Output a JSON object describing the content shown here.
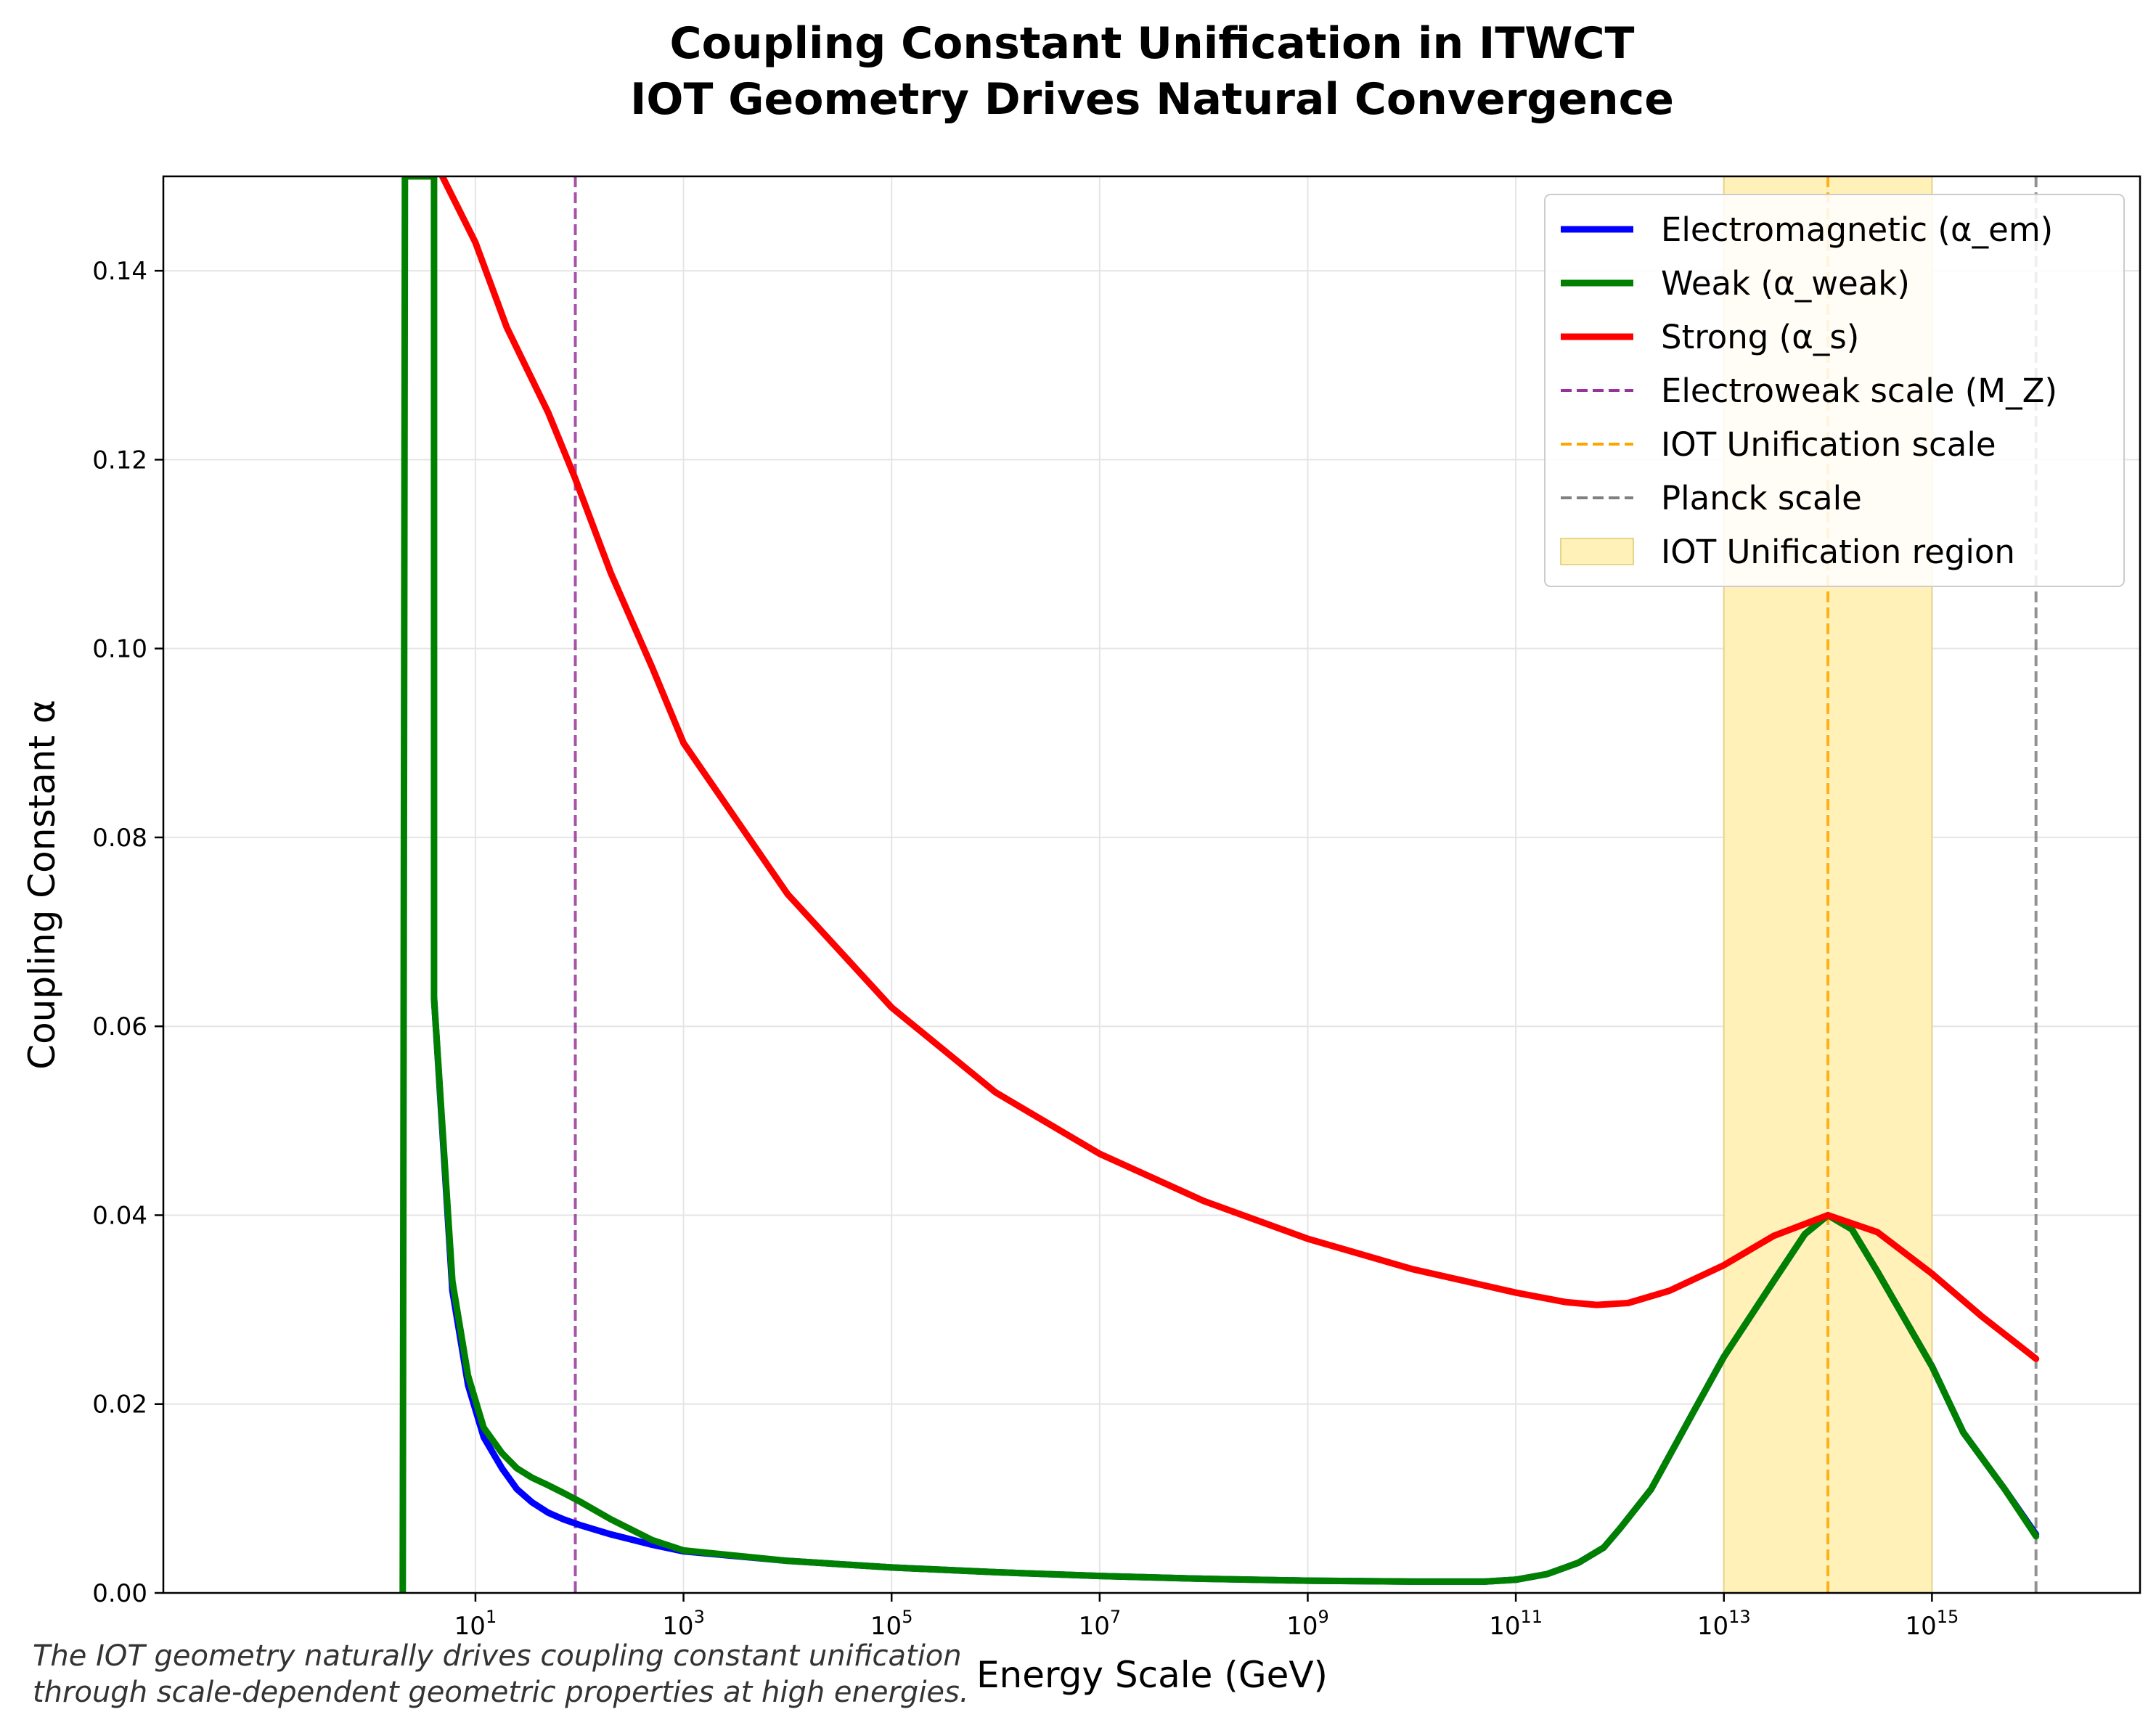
{
  "chart_data": {
    "type": "line",
    "title": "Coupling Constant Unification in ITWCT",
    "subtitle": "IOT Geometry Drives Natural Convergence",
    "xlabel": "Energy Scale (GeV)",
    "ylabel": "Coupling Constant α",
    "x_scale": "log",
    "xlim": [
      0.01,
      1e+17
    ],
    "ylim": [
      0,
      0.15
    ],
    "grid": true,
    "legend_position": "top-right",
    "x_ticks": [
      {
        "value": 10,
        "base": "10",
        "exp": "1"
      },
      {
        "value": 1000,
        "base": "10",
        "exp": "3"
      },
      {
        "value": 100000,
        "base": "10",
        "exp": "5"
      },
      {
        "value": 10000000,
        "base": "10",
        "exp": "7"
      },
      {
        "value": 1000000000,
        "base": "10",
        "exp": "9"
      },
      {
        "value": 100000000000,
        "base": "10",
        "exp": "11"
      },
      {
        "value": 10000000000000,
        "base": "10",
        "exp": "13"
      },
      {
        "value": 1000000000000000,
        "base": "10",
        "exp": "15"
      }
    ],
    "y_ticks": [
      {
        "value": 0,
        "label": "0.00"
      },
      {
        "value": 0.02,
        "label": "0.02"
      },
      {
        "value": 0.04,
        "label": "0.04"
      },
      {
        "value": 0.06,
        "label": "0.06"
      },
      {
        "value": 0.08,
        "label": "0.08"
      },
      {
        "value": 0.1,
        "label": "0.10"
      },
      {
        "value": 0.12,
        "label": "0.12"
      },
      {
        "value": 0.14,
        "label": "0.14"
      }
    ],
    "series": [
      {
        "name": "Electromagnetic (α_em)",
        "color": "#0000ff",
        "points": [
          [
            4,
            0.063
          ],
          [
            6,
            0.032
          ],
          [
            8.5,
            0.022
          ],
          [
            12,
            0.0165
          ],
          [
            18,
            0.0132
          ],
          [
            25,
            0.011
          ],
          [
            35,
            0.0096
          ],
          [
            50,
            0.0085
          ],
          [
            70,
            0.0078
          ],
          [
            100,
            0.0072
          ],
          [
            200,
            0.0062
          ],
          [
            500,
            0.0051
          ],
          [
            1000,
            0.0044
          ],
          [
            10000.0,
            0.0034
          ],
          [
            100000.0,
            0.0027
          ],
          [
            1000000.0,
            0.0022
          ],
          [
            10000000.0,
            0.0018
          ],
          [
            100000000.0,
            0.0015
          ],
          [
            1000000000.0,
            0.0013
          ],
          [
            10000000000.0,
            0.0012
          ],
          [
            50000000000.0,
            0.0012
          ],
          [
            100000000000.0,
            0.0014
          ],
          [
            200000000000.0,
            0.002
          ],
          [
            400000000000.0,
            0.0032
          ],
          [
            700000000000.0,
            0.0048
          ],
          [
            1000000000000.0,
            0.0068
          ],
          [
            2000000000000.0,
            0.011
          ],
          [
            5000000000000.0,
            0.019
          ],
          [
            10000000000000.0,
            0.025
          ],
          [
            30000000000000.0,
            0.033
          ],
          [
            60000000000000.0,
            0.038
          ],
          [
            100000000000000.0,
            0.04
          ],
          [
            170000000000000.0,
            0.0385
          ],
          [
            300000000000000.0,
            0.034
          ],
          [
            1000000000000000.0,
            0.024
          ],
          [
            2000000000000000.0,
            0.017
          ],
          [
            5000000000000000.0,
            0.011
          ],
          [
            1e+16,
            0.0062
          ]
        ]
      },
      {
        "name": "Weak (α_weak)",
        "color": "#008000",
        "points": [
          [
            2,
            0
          ],
          [
            2.1,
            0.15
          ],
          [
            4,
            0.15
          ],
          [
            4,
            0.063
          ],
          [
            6,
            0.033
          ],
          [
            8.5,
            0.023
          ],
          [
            12,
            0.0175
          ],
          [
            18,
            0.0148
          ],
          [
            25,
            0.0132
          ],
          [
            35,
            0.0122
          ],
          [
            50,
            0.0114
          ],
          [
            70,
            0.0106
          ],
          [
            100,
            0.0097
          ],
          [
            200,
            0.0078
          ],
          [
            500,
            0.0056
          ],
          [
            1000,
            0.0045
          ],
          [
            10000.0,
            0.0034
          ],
          [
            100000.0,
            0.0027
          ],
          [
            1000000.0,
            0.0022
          ],
          [
            10000000.0,
            0.0018
          ],
          [
            100000000.0,
            0.0015
          ],
          [
            1000000000.0,
            0.0013
          ],
          [
            10000000000.0,
            0.0012
          ],
          [
            50000000000.0,
            0.0012
          ],
          [
            100000000000.0,
            0.0014
          ],
          [
            200000000000.0,
            0.002
          ],
          [
            400000000000.0,
            0.0032
          ],
          [
            700000000000.0,
            0.0048
          ],
          [
            1000000000000.0,
            0.0068
          ],
          [
            2000000000000.0,
            0.011
          ],
          [
            5000000000000.0,
            0.019
          ],
          [
            10000000000000.0,
            0.025
          ],
          [
            30000000000000.0,
            0.033
          ],
          [
            60000000000000.0,
            0.038
          ],
          [
            100000000000000.0,
            0.04
          ],
          [
            170000000000000.0,
            0.0385
          ],
          [
            300000000000000.0,
            0.034
          ],
          [
            1000000000000000.0,
            0.024
          ],
          [
            2000000000000000.0,
            0.017
          ],
          [
            5000000000000000.0,
            0.011
          ],
          [
            1e+16,
            0.006
          ]
        ]
      },
      {
        "name": "Strong (α_s)",
        "color": "#ff0000",
        "points": [
          [
            4.8,
            0.15
          ],
          [
            10,
            0.143
          ],
          [
            20,
            0.134
          ],
          [
            50,
            0.125
          ],
          [
            91,
            0.118
          ],
          [
            200,
            0.108
          ],
          [
            500,
            0.098
          ],
          [
            1000,
            0.09
          ],
          [
            10000.0,
            0.074
          ],
          [
            100000.0,
            0.062
          ],
          [
            1000000.0,
            0.053
          ],
          [
            10000000.0,
            0.0465
          ],
          [
            100000000.0,
            0.0415
          ],
          [
            1000000000.0,
            0.0375
          ],
          [
            10000000000.0,
            0.0343
          ],
          [
            100000000000.0,
            0.0318
          ],
          [
            300000000000.0,
            0.0308
          ],
          [
            600000000000.0,
            0.0305
          ],
          [
            1200000000000.0,
            0.0307
          ],
          [
            3000000000000.0,
            0.032
          ],
          [
            10000000000000.0,
            0.0347
          ],
          [
            30000000000000.0,
            0.0378
          ],
          [
            100000000000000.0,
            0.04
          ],
          [
            300000000000000.0,
            0.0382
          ],
          [
            1000000000000000.0,
            0.0338
          ],
          [
            3000000000000000.0,
            0.0293
          ],
          [
            1e+16,
            0.0248
          ]
        ]
      }
    ],
    "reference_lines": [
      {
        "name": "Electroweak scale (M_Z)",
        "x": 91.2,
        "color": "#993399"
      },
      {
        "name": "IOT Unification scale",
        "x": 100000000000000.0,
        "color": "#ffa500"
      },
      {
        "name": "Planck scale",
        "x": 1e+16,
        "color": "#808080"
      }
    ],
    "region": {
      "name": "IOT Unification region",
      "x_range": [
        10000000000000.0,
        1000000000000000.0
      ],
      "color": "#fff1b8",
      "edge_color": "#e6d48a"
    },
    "caption": [
      "The IOT geometry naturally drives coupling constant unification",
      "through scale-dependent geometric properties at high energies."
    ]
  }
}
